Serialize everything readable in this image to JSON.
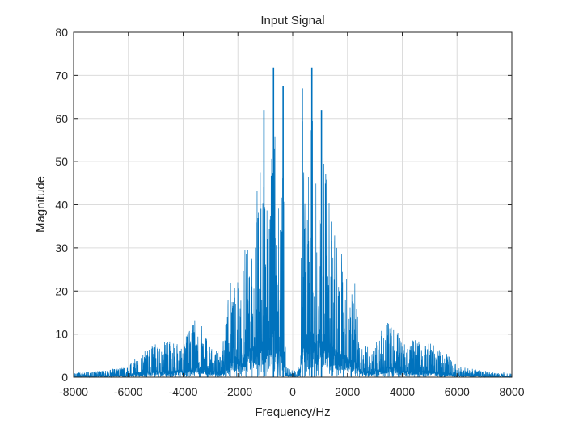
{
  "chart_data": {
    "type": "line",
    "title": "Input Signal",
    "xlabel": "Frequency/Hz",
    "ylabel": "Magnitude",
    "xlim": [
      -8000,
      8000
    ],
    "ylim": [
      0,
      80
    ],
    "xticks": [
      "-8000",
      "-6000",
      "-4000",
      "-2000",
      "0",
      "2000",
      "4000",
      "6000",
      "8000"
    ],
    "yticks": [
      "0",
      "10",
      "20",
      "30",
      "40",
      "50",
      "60",
      "70",
      "80"
    ],
    "grid": true,
    "series_color": "#0072BD",
    "envelope_max": {
      "x": [
        0,
        250,
        300,
        350,
        450,
        550,
        700,
        800,
        900,
        1050,
        1200,
        1350,
        1500,
        1750,
        2000,
        2200,
        2300,
        2500,
        2750,
        3000,
        3250,
        3500,
        3750,
        4000,
        4250,
        4500,
        4750,
        5000,
        5250,
        5500,
        5750,
        6000,
        6500,
        7000,
        8000
      ],
      "y": [
        1.5,
        2.5,
        20,
        67,
        40,
        45,
        72,
        45,
        50,
        62,
        50,
        40,
        35,
        30,
        24,
        20,
        23,
        9,
        7,
        8,
        11,
        14,
        12,
        8,
        8,
        9,
        8,
        8,
        7,
        6,
        5,
        2.5,
        2,
        1.5,
        1
      ]
    },
    "peaks": [
      {
        "x": -1050,
        "y": 62
      },
      {
        "x": -700,
        "y": 71.8
      },
      {
        "x": -350,
        "y": 67.5
      },
      {
        "x": 350,
        "y": 67
      },
      {
        "x": 700,
        "y": 71.8
      },
      {
        "x": 1050,
        "y": 62
      }
    ]
  }
}
